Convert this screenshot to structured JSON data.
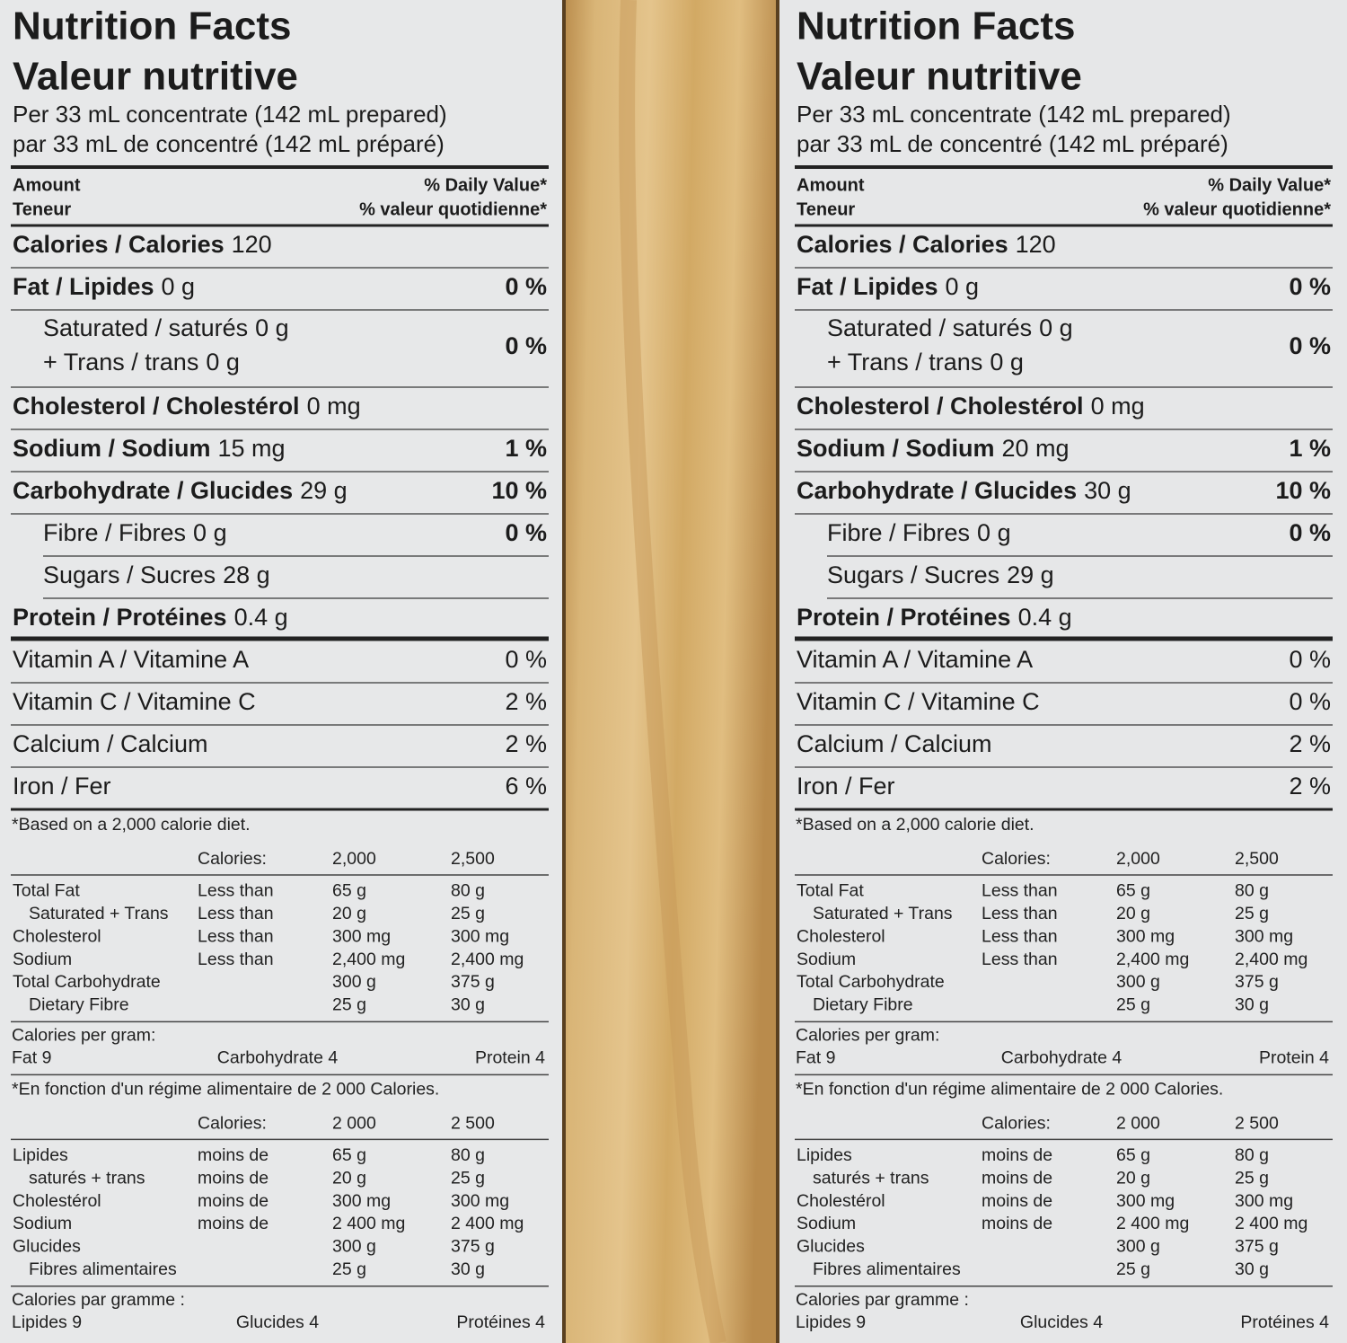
{
  "panels": [
    {
      "title_en": "Nutrition Facts",
      "title_fr": "Valeur nutritive",
      "serving_en": "Per 33 mL concentrate (142 mL prepared)",
      "serving_fr": "par 33 mL de concentré (142 mL préparé)",
      "header": {
        "amount": "Amount",
        "teneur": "Teneur",
        "dv_en": "% Daily Value*",
        "dv_fr": "% valeur quotidienne*"
      },
      "nutrients": [
        {
          "name": "Calories / Calories",
          "amount": "120"
        },
        {
          "name": "Fat / Lipides",
          "amount": "0 g",
          "dv": "0 %",
          "sub": [
            {
              "lines": [
                {
                  "name": "Saturated / saturés",
                  "amount": "0 g"
                },
                {
                  "name": "+ Trans / trans",
                  "amount": "0 g"
                }
              ],
              "dv": "0 %"
            }
          ]
        },
        {
          "name": "Cholesterol / Cholestérol",
          "amount": "0 mg"
        },
        {
          "name": "Sodium / Sodium",
          "amount": "15 mg",
          "dv": "1 %"
        },
        {
          "name": "Carbohydrate / Glucides",
          "amount": "29 g",
          "dv": "10 %",
          "sub": [
            {
              "name": "Fibre / Fibres",
              "amount": "0 g",
              "dv": "0 %"
            },
            {
              "name": "Sugars / Sucres",
              "amount": "28 g"
            }
          ]
        },
        {
          "name": "Protein / Protéines",
          "amount": "0.4 g"
        }
      ],
      "vitamins": [
        {
          "name": "Vitamin A / Vitamine A",
          "dv": "0 %"
        },
        {
          "name": "Vitamin C / Vitamine C",
          "dv": "2 %"
        },
        {
          "name": "Calcium / Calcium",
          "dv": "2 %"
        },
        {
          "name": "Iron / Fer",
          "dv": "6 %"
        }
      ],
      "footnote_en": {
        "note": "*Based on a 2,000 calorie diet.",
        "header": [
          "Calories:",
          "2,000",
          "2,500"
        ],
        "rows": [
          {
            "nutrient": "Total Fat",
            "qualifier": "Less than",
            "amounts": [
              "65 g",
              "80 g"
            ],
            "sub": {
              "nutrient": "Saturated + Trans",
              "qualifier": "Less than",
              "amounts": [
                "20 g",
                "25 g"
              ]
            }
          },
          {
            "nutrient": "Cholesterol",
            "qualifier": "Less than",
            "amounts": [
              "300 mg",
              "300 mg"
            ]
          },
          {
            "nutrient": "Sodium",
            "qualifier": "Less than",
            "amounts": [
              "2,400 mg",
              "2,400 mg"
            ]
          },
          {
            "nutrient": "Total Carbohydrate",
            "amounts": [
              "300 g",
              "375 g"
            ],
            "sub": {
              "nutrient": "Dietary Fibre",
              "amounts": [
                "25 g",
                "30 g"
              ]
            }
          }
        ],
        "per_gram_title": "Calories per gram:",
        "per_gram": [
          "Fat 9",
          "Carbohydrate 4",
          "Protein 4"
        ]
      },
      "footnote_fr": {
        "note": "*En fonction d'un régime alimentaire de 2 000 Calories.",
        "header": [
          "Calories:",
          "2 000",
          "2 500"
        ],
        "rows": [
          {
            "nutrient": "Lipides",
            "qualifier": "moins de",
            "amounts": [
              "65 g",
              "80 g"
            ],
            "sub": {
              "nutrient": "saturés + trans",
              "qualifier": "moins de",
              "amounts": [
                "20 g",
                "25 g"
              ]
            }
          },
          {
            "nutrient": "Cholestérol",
            "qualifier": "moins de",
            "amounts": [
              "300 mg",
              "300 mg"
            ]
          },
          {
            "nutrient": "Sodium",
            "qualifier": "moins de",
            "amounts": [
              "2 400 mg",
              "2 400 mg"
            ]
          },
          {
            "nutrient": "Glucides",
            "amounts": [
              "300 g",
              "375 g"
            ],
            "sub": {
              "nutrient": "Fibres alimentaires",
              "amounts": [
                "25 g",
                "30 g"
              ]
            }
          }
        ],
        "per_gram_title": "Calories par gramme :",
        "per_gram": [
          "Lipides 9",
          "Glucides 4",
          "Protéines 4"
        ]
      }
    },
    {
      "title_en": "Nutrition Facts",
      "title_fr": "Valeur nutritive",
      "serving_en": "Per 33 mL concentrate (142 mL prepared)",
      "serving_fr": "par 33 mL de concentré (142 mL préparé)",
      "header": {
        "amount": "Amount",
        "teneur": "Teneur",
        "dv_en": "% Daily Value*",
        "dv_fr": "% valeur quotidienne*"
      },
      "nutrients": [
        {
          "name": "Calories / Calories",
          "amount": "120"
        },
        {
          "name": "Fat / Lipides",
          "amount": "0 g",
          "dv": "0 %",
          "sub": [
            {
              "lines": [
                {
                  "name": "Saturated / saturés",
                  "amount": "0 g"
                },
                {
                  "name": "+ Trans / trans",
                  "amount": "0 g"
                }
              ],
              "dv": "0 %"
            }
          ]
        },
        {
          "name": "Cholesterol / Cholestérol",
          "amount": "0 mg"
        },
        {
          "name": "Sodium / Sodium",
          "amount": "20 mg",
          "dv": "1 %"
        },
        {
          "name": "Carbohydrate / Glucides",
          "amount": "30 g",
          "dv": "10 %",
          "sub": [
            {
              "name": "Fibre / Fibres",
              "amount": "0 g",
              "dv": "0 %"
            },
            {
              "name": "Sugars / Sucres",
              "amount": "29 g"
            }
          ]
        },
        {
          "name": "Protein / Protéines",
          "amount": "0.4 g"
        }
      ],
      "vitamins": [
        {
          "name": "Vitamin A / Vitamine A",
          "dv": "0 %"
        },
        {
          "name": "Vitamin C / Vitamine C",
          "dv": "0 %"
        },
        {
          "name": "Calcium / Calcium",
          "dv": "2 %"
        },
        {
          "name": "Iron / Fer",
          "dv": "2 %"
        }
      ],
      "footnote_en": {
        "note": "*Based on a 2,000 calorie diet.",
        "header": [
          "Calories:",
          "2,000",
          "2,500"
        ],
        "rows": [
          {
            "nutrient": "Total Fat",
            "qualifier": "Less than",
            "amounts": [
              "65 g",
              "80 g"
            ],
            "sub": {
              "nutrient": "Saturated + Trans",
              "qualifier": "Less than",
              "amounts": [
                "20 g",
                "25 g"
              ]
            }
          },
          {
            "nutrient": "Cholesterol",
            "qualifier": "Less than",
            "amounts": [
              "300 mg",
              "300 mg"
            ]
          },
          {
            "nutrient": "Sodium",
            "qualifier": "Less than",
            "amounts": [
              "2,400 mg",
              "2,400 mg"
            ]
          },
          {
            "nutrient": "Total Carbohydrate",
            "amounts": [
              "300 g",
              "375 g"
            ],
            "sub": {
              "nutrient": "Dietary Fibre",
              "amounts": [
                "25 g",
                "30 g"
              ]
            }
          }
        ],
        "per_gram_title": "Calories per gram:",
        "per_gram": [
          "Fat 9",
          "Carbohydrate 4",
          "Protein 4"
        ]
      },
      "footnote_fr": {
        "note": "*En fonction d'un régime alimentaire de 2 000 Calories.",
        "header": [
          "Calories:",
          "2 000",
          "2 500"
        ],
        "rows": [
          {
            "nutrient": "Lipides",
            "qualifier": "moins de",
            "amounts": [
              "65 g",
              "80 g"
            ],
            "sub": {
              "nutrient": "saturés + trans",
              "qualifier": "moins de",
              "amounts": [
                "20 g",
                "25 g"
              ]
            }
          },
          {
            "nutrient": "Cholestérol",
            "qualifier": "moins de",
            "amounts": [
              "300 mg",
              "300 mg"
            ]
          },
          {
            "nutrient": "Sodium",
            "qualifier": "moins de",
            "amounts": [
              "2 400 mg",
              "2 400 mg"
            ]
          },
          {
            "nutrient": "Glucides",
            "amounts": [
              "300 g",
              "375 g"
            ],
            "sub": {
              "nutrient": "Fibres alimentaires",
              "amounts": [
                "25 g",
                "30 g"
              ]
            }
          }
        ],
        "per_gram_title": "Calories par gramme :",
        "per_gram": [
          "Lipides 9",
          "Glucides 4",
          "Protéines 4"
        ]
      }
    }
  ]
}
